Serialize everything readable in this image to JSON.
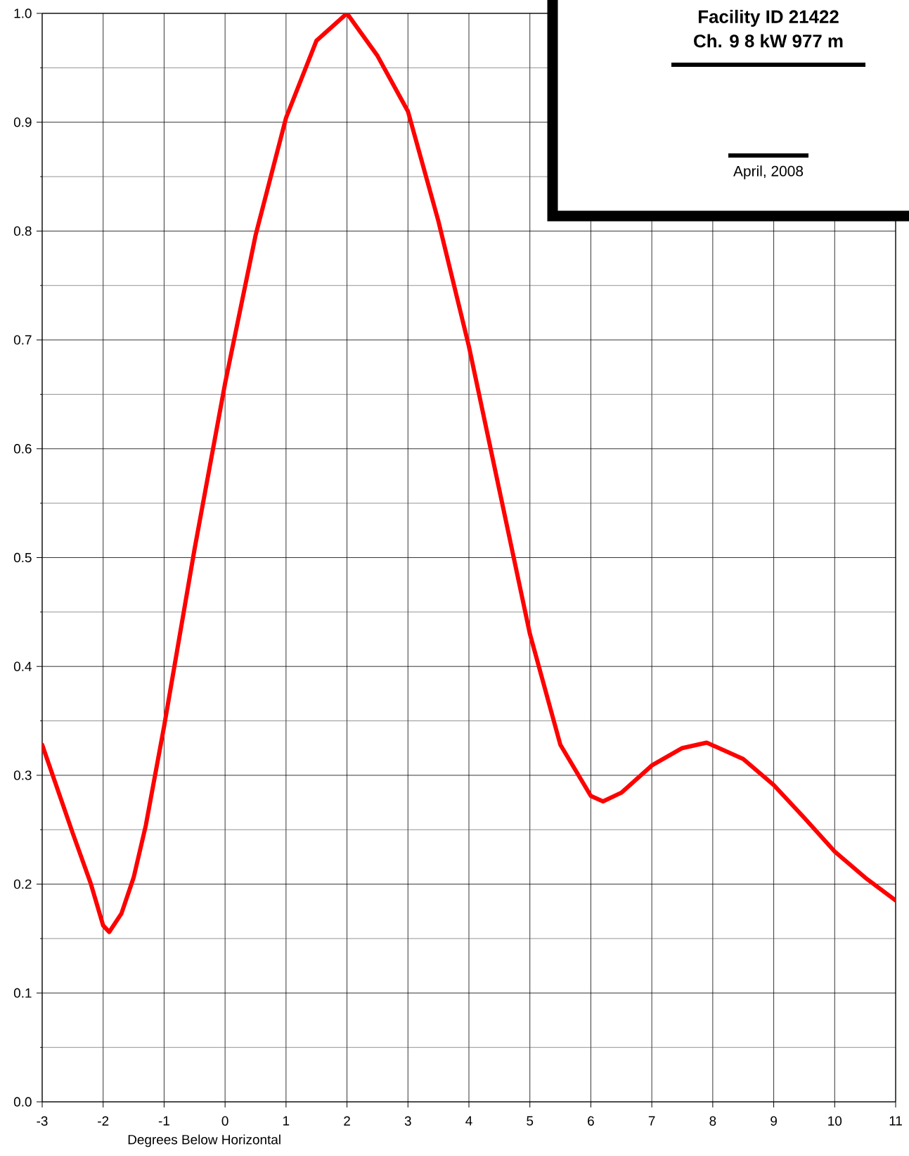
{
  "chart_data": {
    "type": "line",
    "xlabel": "Degrees Below Horizontal",
    "x": [
      -3,
      -2.5,
      -2.2,
      -2,
      -1.9,
      -1.7,
      -1.5,
      -1.3,
      -1,
      -0.5,
      0,
      0.5,
      1,
      1.5,
      2,
      2.5,
      3,
      3.5,
      4,
      4.5,
      5,
      5.5,
      6,
      6.2,
      6.5,
      7,
      7.5,
      7.9,
      8.5,
      9,
      9.5,
      10,
      10.5,
      11
    ],
    "series": [
      {
        "color": "#ff0000",
        "values": [
          0.328,
          0.247,
          0.2,
          0.162,
          0.156,
          0.173,
          0.206,
          0.254,
          0.345,
          0.508,
          0.66,
          0.796,
          0.904,
          0.975,
          1.0,
          0.961,
          0.91,
          0.809,
          0.694,
          0.562,
          0.43,
          0.328,
          0.281,
          0.276,
          0.284,
          0.309,
          0.325,
          0.33,
          0.315,
          0.291,
          0.261,
          0.23,
          0.206,
          0.185
        ]
      }
    ],
    "xlim": [
      -3,
      11
    ],
    "xticks": [
      -3,
      -2,
      -1,
      0,
      1,
      2,
      3,
      4,
      5,
      6,
      7,
      8,
      9,
      10,
      11
    ],
    "ylim": [
      0,
      1
    ],
    "yticks": [
      {
        "value": 0,
        "label": "0.0"
      },
      0.1,
      0.2,
      0.3,
      0.4,
      0.5,
      0.6,
      0.7,
      0.8,
      0.9,
      {
        "value": 1,
        "label": "1.0"
      }
    ],
    "grid": true,
    "marker": "none",
    "line_style": "solid",
    "annotations": [
      "Facility ID 21422",
      "Ch. 9  8 kW  977 m",
      "April, 2008"
    ]
  }
}
